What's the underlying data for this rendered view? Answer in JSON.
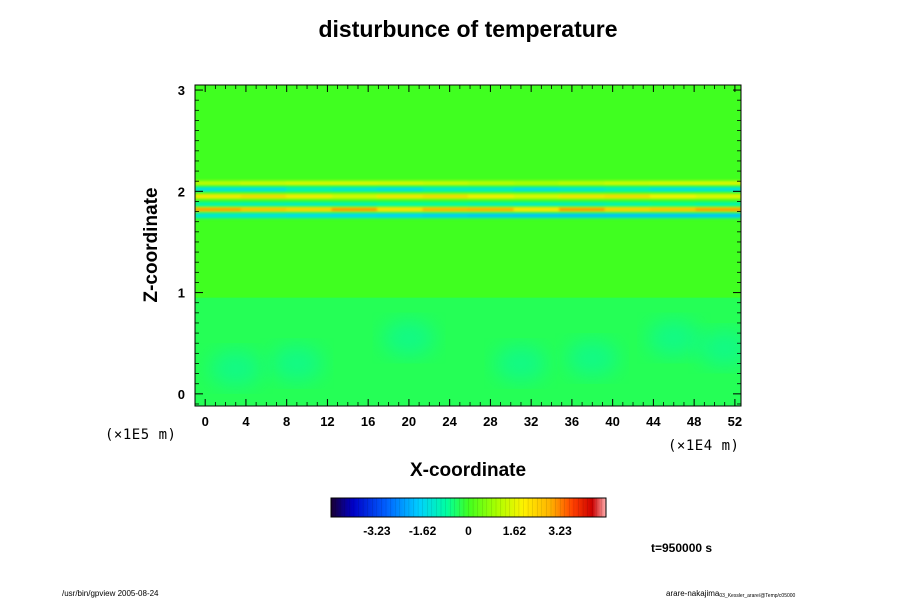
{
  "chart_data": {
    "type": "heatmap",
    "title": "disturbunce of temperature",
    "xlabel": "X-coordinate",
    "ylabel": "Z-coordinate",
    "x_unit": "(×1E4 m)",
    "y_unit": "(×1E5 m)",
    "xlim": [
      -1,
      52.6
    ],
    "ylim": [
      -0.12,
      3.05
    ],
    "x_ticks": [
      0,
      4,
      8,
      12,
      16,
      20,
      24,
      28,
      32,
      36,
      40,
      44,
      48,
      52
    ],
    "x_tick_labels": [
      "0",
      "4",
      "8",
      "12",
      "16",
      "20",
      "24",
      "28",
      "32",
      "36",
      "40",
      "44",
      "48",
      "52"
    ],
    "y_ticks": [
      0,
      1,
      2,
      3
    ],
    "y_tick_labels": [
      "0",
      "1",
      "2",
      "3"
    ],
    "grid": false,
    "colormap": [
      "#1a0033",
      "#0000c8",
      "#0060ff",
      "#00d0ff",
      "#00ffa0",
      "#40ff20",
      "#a8ff00",
      "#fff200",
      "#ffb000",
      "#ff4000",
      "#cc0000",
      "#ffb0b0"
    ],
    "value_range": [
      -4.85,
      4.85
    ],
    "colorbar_ticks": [
      -3.23,
      -1.62,
      0,
      1.62,
      3.23
    ],
    "colorbar_tick_labels": [
      "-3.23",
      "-1.62",
      "0",
      "1.62",
      "3.23"
    ],
    "background_color": "#40ff20",
    "features": [
      {
        "name": "warm band",
        "z": 2.08,
        "value": 1.6
      },
      {
        "name": "cool band",
        "z": 2.02,
        "value": -1.6
      },
      {
        "name": "warm band",
        "z": 1.95,
        "value": 2.4
      },
      {
        "name": "cool band",
        "z": 1.87,
        "value": -1.2
      },
      {
        "name": "warm band",
        "z": 1.82,
        "value": 3.2
      },
      {
        "name": "cool band",
        "z": 1.76,
        "value": -2.0
      },
      {
        "name": "cool region",
        "z": 0.4,
        "value": -0.6
      }
    ]
  },
  "time_label": "t=950000 s",
  "footer_left": "/usr/bin/gpview 2005-08-24",
  "footer_right_main": "arare-nakajima",
  "footer_right_small": "03_Kessler_arare/@Temp/c05000"
}
